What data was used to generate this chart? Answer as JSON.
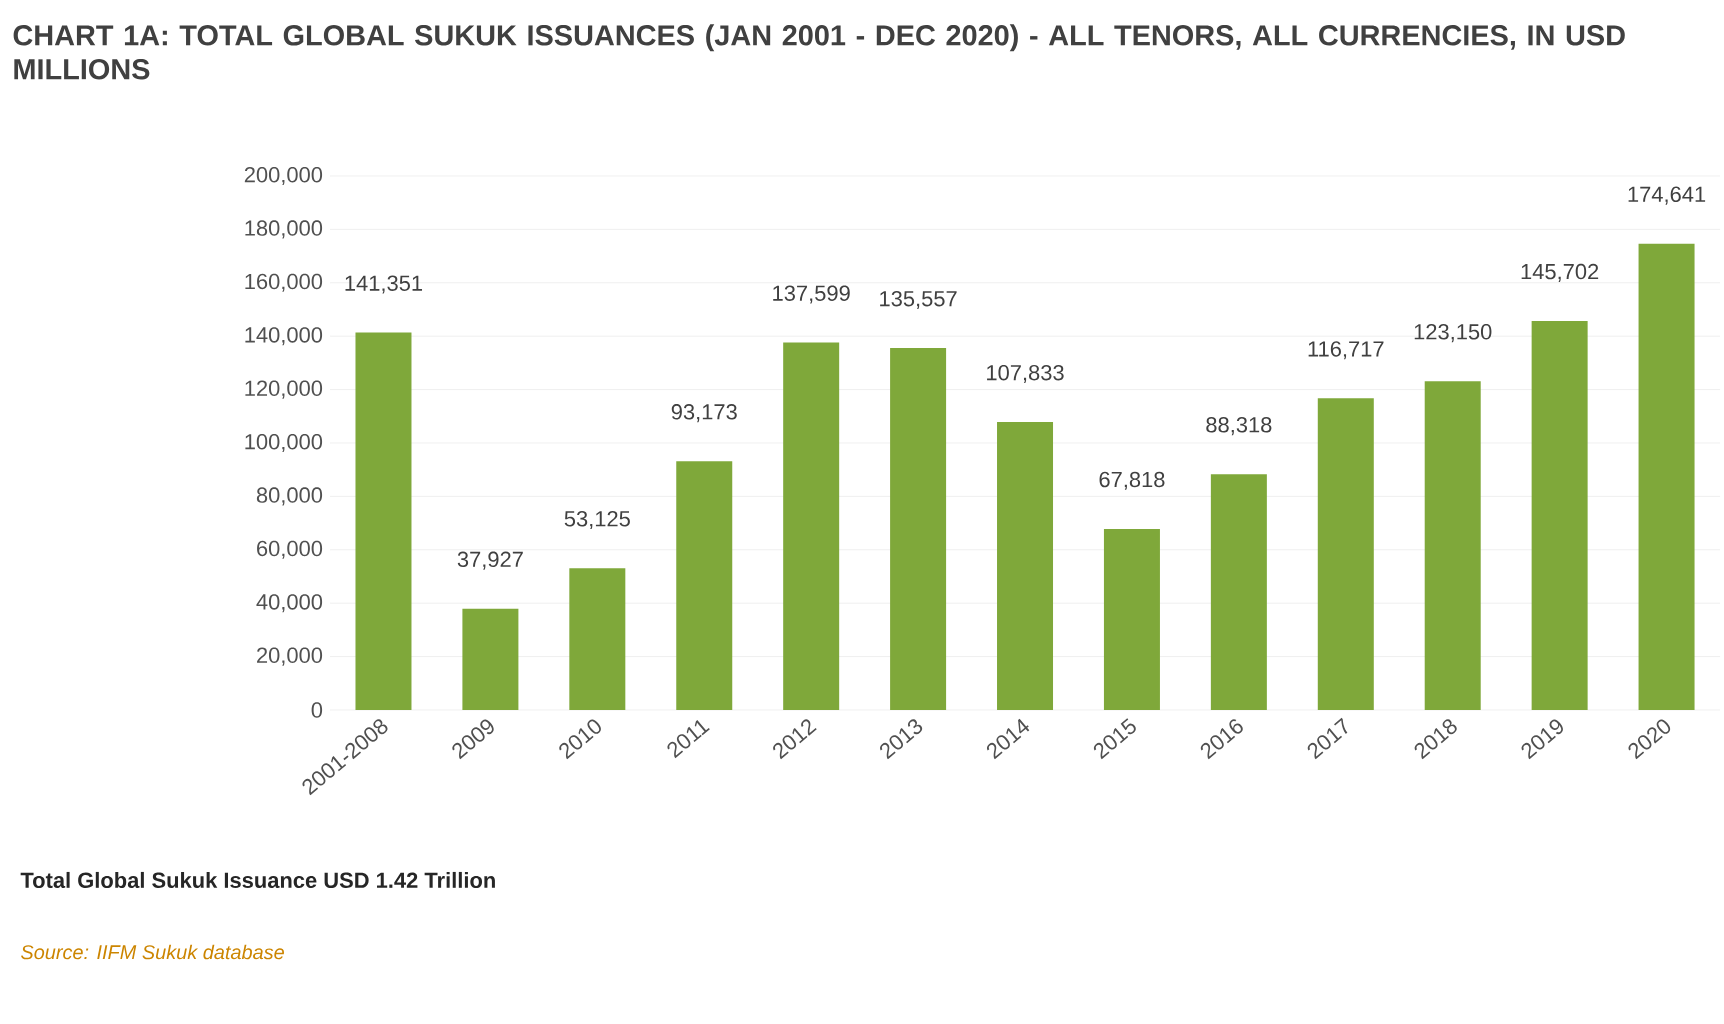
{
  "chart_data": {
    "type": "bar",
    "title": "CHART 1A: TOTAL GLOBAL SUKUK ISSUANCES (JAN 2001 - DEC 2020) - ALL TENORS, ALL CURRENCIES, IN USD MILLIONS",
    "categories": [
      "2001-2008",
      "2009",
      "2010",
      "2011",
      "2012",
      "2013",
      "2014",
      "2015",
      "2016",
      "2017",
      "2018",
      "2019",
      "2020"
    ],
    "values": [
      141351,
      37927,
      53125,
      93173,
      137599,
      135557,
      107833,
      67818,
      88318,
      116717,
      123150,
      145702,
      174641
    ],
    "value_labels": [
      "141,351",
      "37,927",
      "53,125",
      "93,173",
      "137,599",
      "135,557",
      "107,833",
      "67,818",
      "88,318",
      "116,717",
      "123,150",
      "145,702",
      "174,641"
    ],
    "color": "#7fa83a",
    "ylim": [
      0,
      200000
    ],
    "yticks": [
      0,
      {
        "value": 20000,
        "label": "20,000"
      },
      {
        "value": 40000,
        "label": "40,000"
      },
      {
        "value": 60000,
        "label": "60,000"
      },
      {
        "value": 80000,
        "label": "80,000"
      },
      {
        "value": 100000,
        "label": "100,000"
      },
      {
        "value": 120000,
        "label": "120,000"
      },
      {
        "value": 140000,
        "label": "140,000"
      },
      {
        "value": 160000,
        "label": "160,000"
      },
      {
        "value": 180000,
        "label": "180,000"
      },
      {
        "value": 200000,
        "label": "200,000"
      }
    ],
    "grid": "y",
    "annotations": [
      "Total Global Sukuk Issuance USD 1.42 Trillion",
      "Source: IIFM Sukuk database"
    ]
  }
}
